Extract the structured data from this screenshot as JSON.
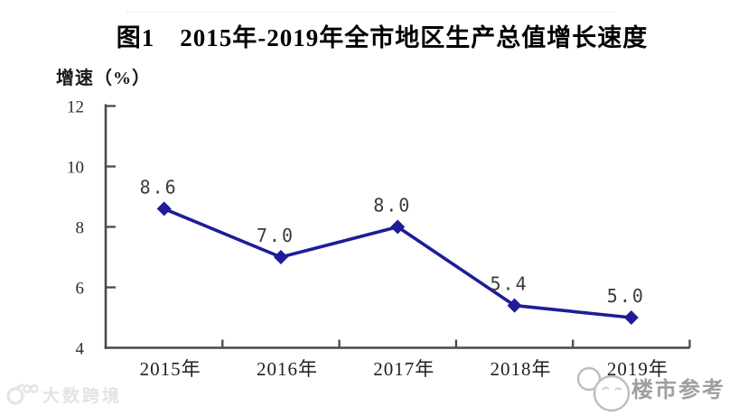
{
  "chart": {
    "title": "图1　2015年-2019年全市地区生产总值增长速度",
    "ylabel": "增速（%）"
  },
  "chart_data": {
    "type": "line",
    "categories": [
      "2015年",
      "2016年",
      "2017年",
      "2018年",
      "2019年"
    ],
    "values": [
      8.6,
      7.0,
      8.0,
      5.4,
      5.0
    ],
    "data_labels": [
      "8.6",
      "7.0",
      "8.0",
      "5.4",
      "5.0"
    ],
    "title": "图1　2015年-2019年全市地区生产总值增长速度",
    "xlabel": "",
    "ylabel": "增速（%）",
    "ylim": [
      4,
      12
    ],
    "yticks": [
      4,
      6,
      8,
      10,
      12
    ],
    "grid": false,
    "legend": null,
    "line_color": "#1d1d99",
    "marker": "diamond",
    "axis_color": "#4a4a4a",
    "label_color": "#3b3b3b"
  },
  "watermarks": {
    "bottom_left": "大数跨境",
    "bottom_right": "楼市参考"
  }
}
